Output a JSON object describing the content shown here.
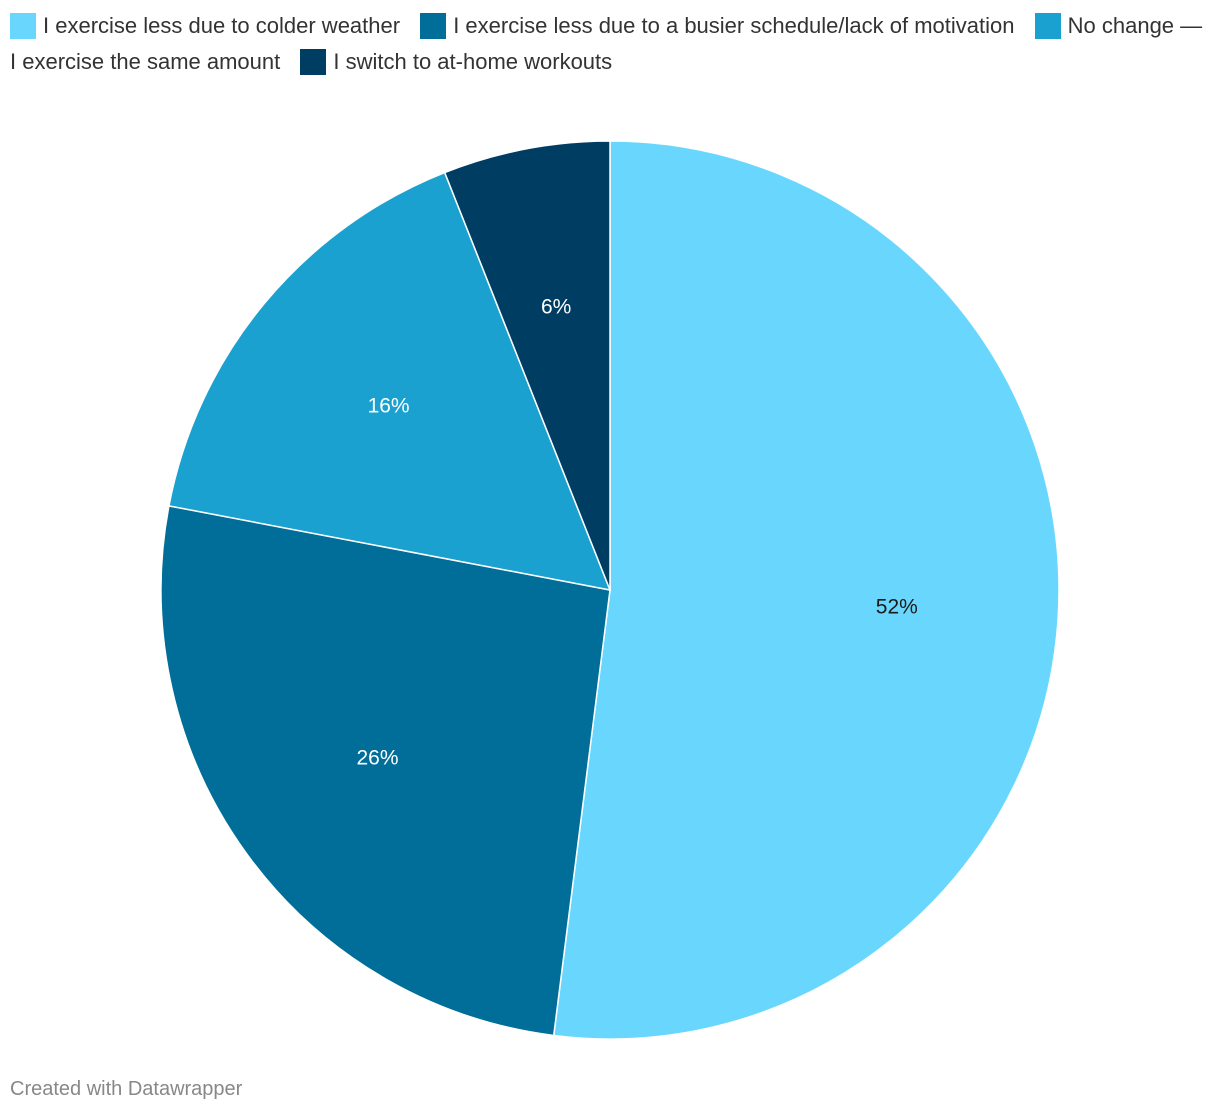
{
  "chart_data": {
    "type": "pie",
    "categories": [
      "I exercise less due to colder weather",
      "I exercise less due to a busier schedule/lack of motivation",
      "No change — I exercise the same amount",
      "I switch to at-home workouts"
    ],
    "values": [
      52,
      26,
      16,
      6
    ],
    "value_labels": [
      "52%",
      "26%",
      "16%",
      "6%"
    ],
    "colors": [
      "#69d7fd",
      "#006e98",
      "#1aa1cf",
      "#003d63"
    ],
    "label_colors": [
      "#1a1a1a",
      "#ffffff",
      "#ffffff",
      "#ffffff"
    ],
    "slice_order": [
      0,
      1,
      2,
      3
    ],
    "start": "12 o'clock",
    "direction": "clockwise",
    "legend_position": "top"
  },
  "footer": {
    "credit": "Created with Datawrapper"
  }
}
